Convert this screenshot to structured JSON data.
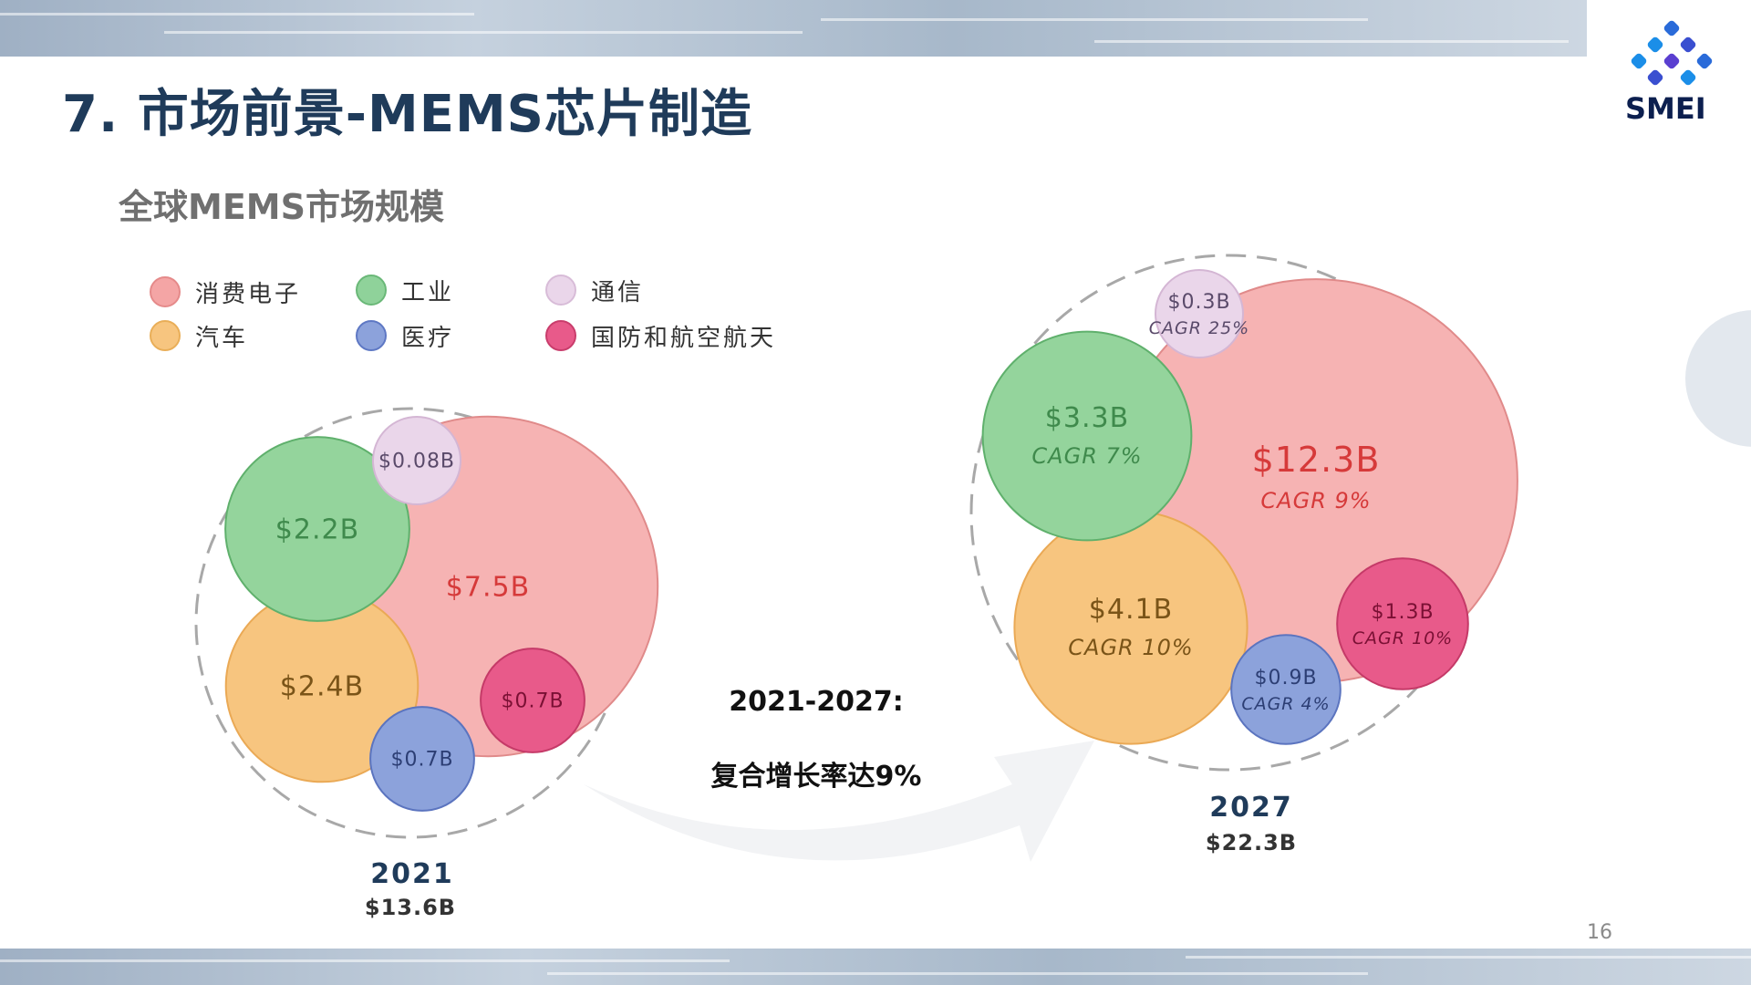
{
  "header": {
    "title": "7. 市场前景-MEMS芯片制造",
    "subtitle": "全球MEMS市场规模",
    "logo_text": "SMEI",
    "page_number": "16"
  },
  "annotation": {
    "period": "2021-2027:",
    "text": "复合增长率达9%"
  },
  "colors": {
    "consumer": "#f6b3b3",
    "industrial": "#94d49c",
    "telecom": "#ead6ea",
    "auto": "#f7c57f",
    "medical": "#8ca2db",
    "defense": "#e85a8a"
  },
  "chart_data": {
    "type": "bubble",
    "legend": [
      {
        "key": "consumer",
        "label": "消费电子"
      },
      {
        "key": "industrial",
        "label": "工业"
      },
      {
        "key": "telecom",
        "label": "通信"
      },
      {
        "key": "auto",
        "label": "汽车"
      },
      {
        "key": "medical",
        "label": "医疗"
      },
      {
        "key": "defense",
        "label": "国防和航空航天"
      }
    ],
    "groups": [
      {
        "year": "2021",
        "total_label": "$13.6B",
        "total": 13.6,
        "segments": [
          {
            "key": "consumer",
            "value": 7.5,
            "label": "$7.5B"
          },
          {
            "key": "auto",
            "value": 2.4,
            "label": "$2.4B"
          },
          {
            "key": "industrial",
            "value": 2.2,
            "label": "$2.2B"
          },
          {
            "key": "medical",
            "value": 0.7,
            "label": "$0.7B"
          },
          {
            "key": "defense",
            "value": 0.7,
            "label": "$0.7B"
          },
          {
            "key": "telecom",
            "value": 0.08,
            "label": "$0.08B"
          }
        ]
      },
      {
        "year": "2027",
        "total_label": "$22.3B",
        "total": 22.3,
        "segments": [
          {
            "key": "consumer",
            "value": 12.3,
            "label": "$12.3B",
            "cagr": "CAGR 9%"
          },
          {
            "key": "auto",
            "value": 4.1,
            "label": "$4.1B",
            "cagr": "CAGR 10%"
          },
          {
            "key": "industrial",
            "value": 3.3,
            "label": "$3.3B",
            "cagr": "CAGR 7%"
          },
          {
            "key": "defense",
            "value": 1.3,
            "label": "$1.3B",
            "cagr": "CAGR 10%"
          },
          {
            "key": "medical",
            "value": 0.9,
            "label": "$0.9B",
            "cagr": "CAGR 4%"
          },
          {
            "key": "telecom",
            "value": 0.3,
            "label": "$0.3B",
            "cagr": "CAGR 25%"
          }
        ]
      }
    ]
  }
}
